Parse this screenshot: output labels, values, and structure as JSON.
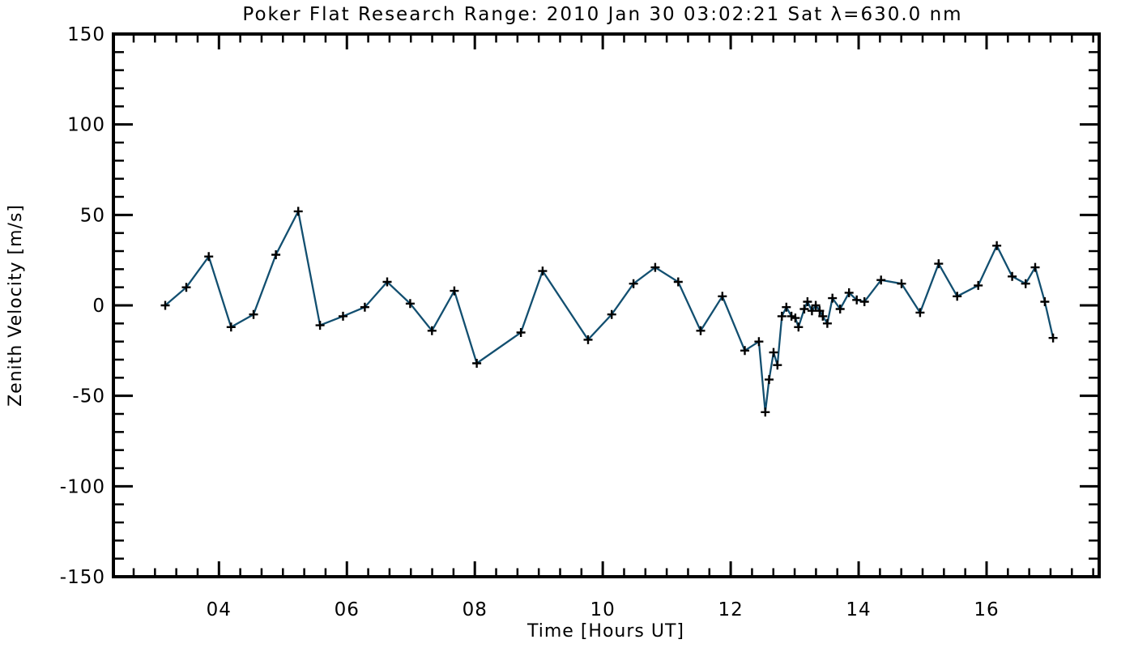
{
  "chart_data": {
    "type": "line",
    "title": "Poker Flat Research Range: 2010 Jan 30 03:02:21 Sat λ=630.0 nm",
    "xlabel": "Time [Hours UT]",
    "ylabel": "Zenith Velocity [m/s]",
    "xlim": [
      2.35,
      17.76
    ],
    "ylim": [
      -150,
      150
    ],
    "x_major_ticks": [
      4,
      6,
      8,
      10,
      12,
      14,
      16
    ],
    "x_tick_labels": [
      "04",
      "06",
      "08",
      "10",
      "12",
      "14",
      "16"
    ],
    "x_minor_step": 0.33333,
    "y_major_ticks": [
      -150,
      -100,
      -50,
      0,
      50,
      100,
      150
    ],
    "y_tick_labels": [
      "-150",
      "-100",
      "-50",
      "0",
      "50",
      "100",
      "150"
    ],
    "y_minor_step": 10,
    "grid": false,
    "legend": "none",
    "marker": "plus",
    "line_color": "#124f70",
    "marker_color": "#000000",
    "axis_color": "#000000",
    "background_color": "#ffffff",
    "series": [
      {
        "name": "zenith-velocity",
        "x": [
          3.16,
          3.49,
          3.84,
          4.19,
          4.54,
          4.89,
          5.24,
          5.58,
          5.94,
          6.28,
          6.63,
          6.99,
          7.33,
          7.68,
          8.03,
          8.72,
          9.06,
          9.77,
          10.14,
          10.48,
          10.82,
          11.18,
          11.53,
          11.87,
          12.22,
          12.44,
          12.54,
          12.6,
          12.67,
          12.73,
          12.8,
          12.87,
          12.95,
          13.01,
          13.06,
          13.15,
          13.2,
          13.27,
          13.33,
          13.39,
          13.44,
          13.51,
          13.59,
          13.71,
          13.85,
          13.97,
          14.09,
          14.35,
          14.67,
          14.96,
          15.25,
          15.54,
          15.87,
          16.16,
          16.4,
          16.61,
          16.76,
          16.91,
          17.04
        ],
        "y": [
          0,
          10,
          27,
          -12,
          -5,
          28,
          52,
          -11,
          -6,
          -1,
          13,
          1,
          -14,
          8,
          -32,
          -15,
          19,
          -19,
          -5,
          12,
          21,
          13,
          -14,
          5,
          -25,
          -20,
          -59,
          -41,
          -26,
          -33,
          -6,
          -1,
          -6,
          -7,
          -12,
          -2,
          2,
          -3,
          0,
          -3,
          -6,
          -10,
          4,
          -2,
          7,
          3,
          2,
          14,
          12,
          -4,
          23,
          5,
          11,
          33,
          16,
          12,
          21,
          2,
          -18
        ]
      }
    ]
  }
}
